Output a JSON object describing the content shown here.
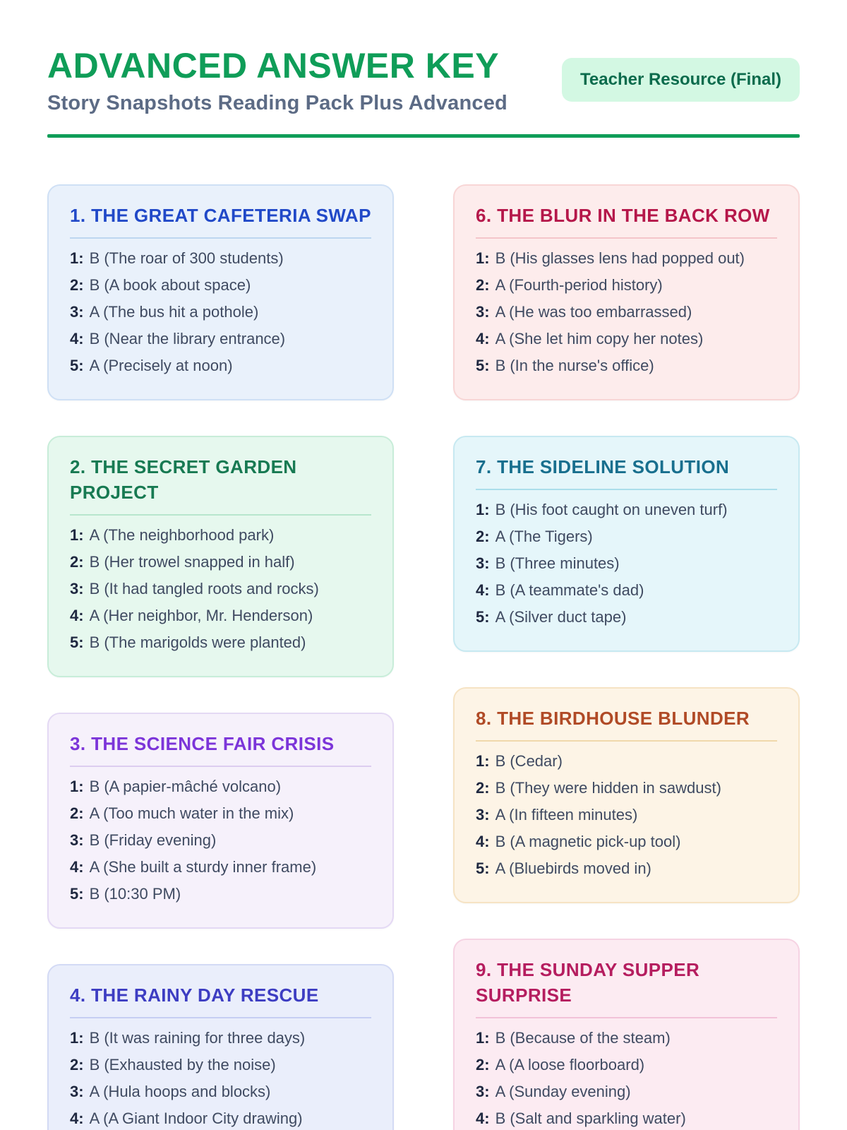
{
  "header": {
    "title": "ADVANCED ANSWER KEY",
    "subtitle": "Story Snapshots Reading Pack Plus Advanced",
    "badge": "Teacher Resource (Final)"
  },
  "colors": {
    "brand_green": "#0f9d58",
    "badge_bg": "#d3f8e3",
    "badge_text": "#0b6b4c",
    "subtitle_text": "#5c6b85",
    "answer_text": "#3f4a61",
    "answer_number": "#1f2840"
  },
  "columns": [
    {
      "cards": [
        {
          "title": "1. THE GREAT CAFETERIA SWAP",
          "theme": {
            "bg": "#e9f1fb",
            "border": "#cfe0f5",
            "title": "#2149c8",
            "rule": "#bdd6f0"
          },
          "answers": [
            {
              "n": "1:",
              "text": "B (The roar of 300 students)"
            },
            {
              "n": "2:",
              "text": "B (A book about space)"
            },
            {
              "n": "3:",
              "text": "A (The bus hit a pothole)"
            },
            {
              "n": "4:",
              "text": "B (Near the library entrance)"
            },
            {
              "n": "5:",
              "text": "A (Precisely at noon)"
            }
          ]
        },
        {
          "title": "2. THE SECRET GARDEN PROJECT",
          "theme": {
            "bg": "#e6f8ee",
            "border": "#c8edd9",
            "title": "#177a52",
            "rule": "#b7e6cd"
          },
          "answers": [
            {
              "n": "1:",
              "text": "A (The neighborhood park)"
            },
            {
              "n": "2:",
              "text": "B (Her trowel snapped in half)"
            },
            {
              "n": "3:",
              "text": "B (It had tangled roots and rocks)"
            },
            {
              "n": "4:",
              "text": "A (Her neighbor, Mr. Henderson)"
            },
            {
              "n": "5:",
              "text": "B (The marigolds were planted)"
            }
          ]
        },
        {
          "title": "3. THE SCIENCE FAIR CRISIS",
          "theme": {
            "bg": "#f6f1fb",
            "border": "#e4d9f4",
            "title": "#7c35d9",
            "rule": "#dccdf0"
          },
          "answers": [
            {
              "n": "1:",
              "text": "B (A papier-mâché volcano)"
            },
            {
              "n": "2:",
              "text": "A (Too much water in the mix)"
            },
            {
              "n": "3:",
              "text": "B (Friday evening)"
            },
            {
              "n": "4:",
              "text": "A (She built a sturdy inner frame)"
            },
            {
              "n": "5:",
              "text": "B (10:30 PM)"
            }
          ]
        },
        {
          "title": "4. THE RAINY DAY RESCUE",
          "theme": {
            "bg": "#eaeefb",
            "border": "#d3daf5",
            "title": "#3d3dc2",
            "rule": "#c6cef2"
          },
          "answers": [
            {
              "n": "1:",
              "text": "B (It was raining for three days)"
            },
            {
              "n": "2:",
              "text": "B (Exhausted by the noise)"
            },
            {
              "n": "3:",
              "text": "A (Hula hoops and blocks)"
            },
            {
              "n": "4:",
              "text": "A (A Giant Indoor City drawing)"
            }
          ]
        }
      ]
    },
    {
      "cards": [
        {
          "title": "6. THE BLUR IN THE BACK ROW",
          "theme": {
            "bg": "#fdecec",
            "border": "#f8d6d6",
            "title": "#b5174a",
            "rule": "#f4c5ca"
          },
          "answers": [
            {
              "n": "1:",
              "text": "B (His glasses lens had popped out)"
            },
            {
              "n": "2:",
              "text": "A (Fourth-period history)"
            },
            {
              "n": "3:",
              "text": "A (He was too embarrassed)"
            },
            {
              "n": "4:",
              "text": "A (She let him copy her notes)"
            },
            {
              "n": "5:",
              "text": "B (In the nurse's office)"
            }
          ]
        },
        {
          "title": "7. THE SIDELINE SOLUTION",
          "theme": {
            "bg": "#e5f6fa",
            "border": "#c7e9f1",
            "title": "#186f8e",
            "rule": "#aadeeb"
          },
          "answers": [
            {
              "n": "1:",
              "text": "B (His foot caught on uneven turf)"
            },
            {
              "n": "2:",
              "text": "A (The Tigers)"
            },
            {
              "n": "3:",
              "text": "B (Three minutes)"
            },
            {
              "n": "4:",
              "text": "B (A teammate's dad)"
            },
            {
              "n": "5:",
              "text": "A (Silver duct tape)"
            }
          ]
        },
        {
          "title": "8. THE BIRDHOUSE BLUNDER",
          "theme": {
            "bg": "#fdf4e6",
            "border": "#f6e3c4",
            "title": "#b04a26",
            "rule": "#f0d8ab"
          },
          "answers": [
            {
              "n": "1:",
              "text": "B (Cedar)"
            },
            {
              "n": "2:",
              "text": "B (They were hidden in sawdust)"
            },
            {
              "n": "3:",
              "text": "A (In fifteen minutes)"
            },
            {
              "n": "4:",
              "text": "B (A magnetic pick-up tool)"
            },
            {
              "n": "5:",
              "text": "A (Bluebirds moved in)"
            }
          ]
        },
        {
          "title": "9. THE SUNDAY SUPPER SURPRISE",
          "theme": {
            "bg": "#fcebf2",
            "border": "#f6d3e3",
            "title": "#b51d5f",
            "rule": "#f2c2d8"
          },
          "answers": [
            {
              "n": "1:",
              "text": "B (Because of the steam)"
            },
            {
              "n": "2:",
              "text": "A (A loose floorboard)"
            },
            {
              "n": "3:",
              "text": "A (Sunday evening)"
            },
            {
              "n": "4:",
              "text": "B (Salt and sparkling water)"
            }
          ]
        }
      ]
    }
  ]
}
